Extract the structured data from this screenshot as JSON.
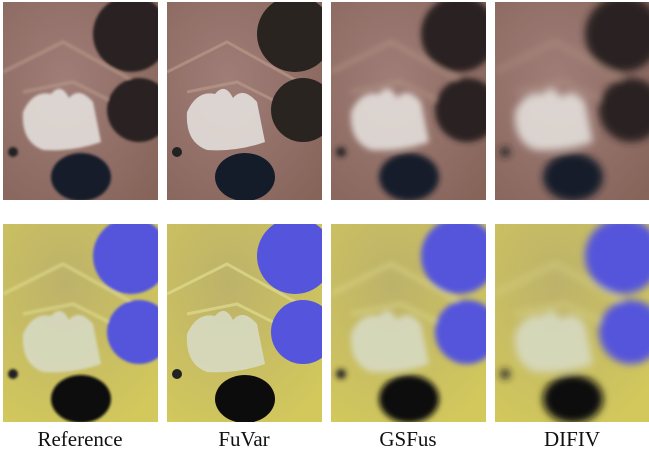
{
  "labels": [
    "Reference",
    "FuVar",
    "GSFus",
    "DIFIV"
  ]
}
